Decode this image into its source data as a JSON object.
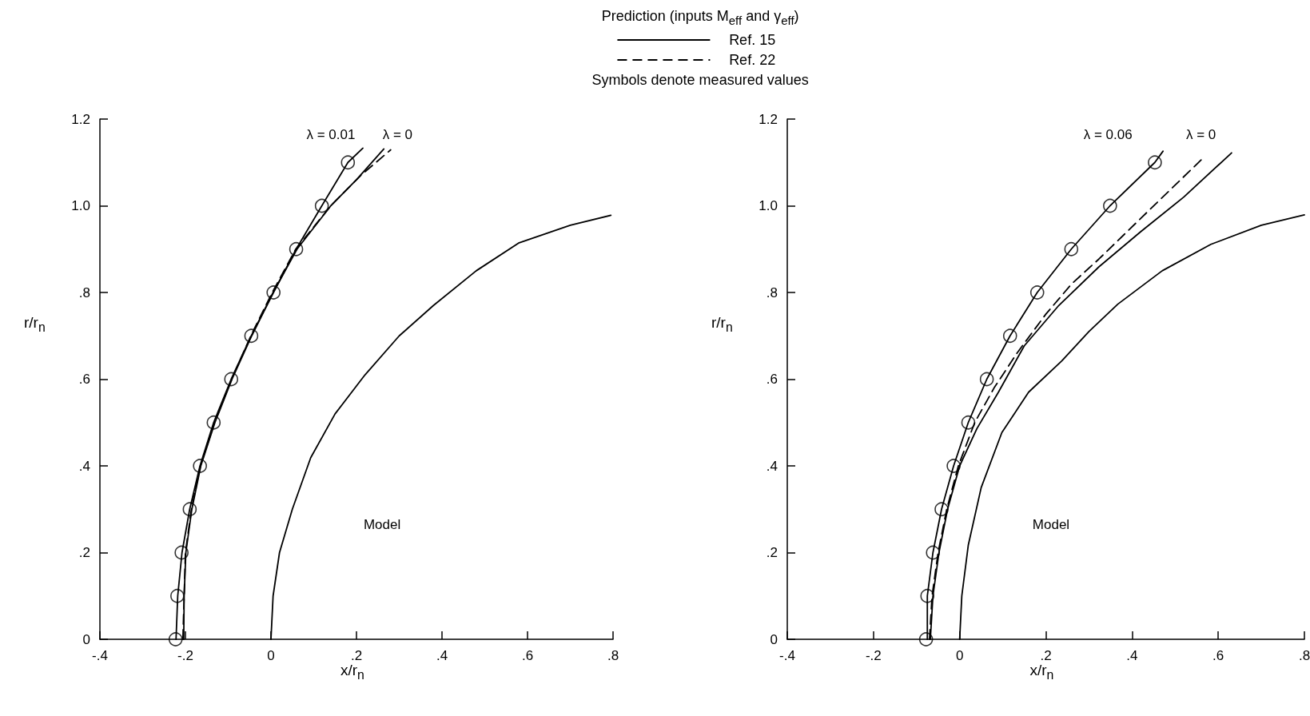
{
  "chart_data": [
    {
      "type": "line",
      "xlabel": "x/r$_{n}$",
      "ylabel": "r/r$_{n}$",
      "legend_title": "Prediction (inputs M$_{eff}$ and γ$_{eff}$)",
      "legend": "top",
      "grid": false,
      "xlim": [
        -0.4,
        0.8
      ],
      "ylim": [
        0,
        1.2
      ],
      "xticks": [
        {
          "value": -0.4,
          "label": "-.4"
        },
        {
          "value": -0.2,
          "label": "-.2"
        },
        0,
        {
          "value": 0.2,
          "label": ".2"
        },
        {
          "value": 0.4,
          "label": ".4"
        },
        {
          "value": 0.6,
          "label": ".6"
        },
        {
          "value": 0.8,
          "label": ".8"
        }
      ],
      "yticks": [
        0,
        {
          "value": 0.2,
          "label": ".2"
        },
        {
          "value": 0.4,
          "label": ".4"
        },
        {
          "value": 0.6,
          "label": ".6"
        },
        {
          "value": 0.8,
          "label": ".8"
        },
        {
          "value": 1.0,
          "label": "1.0"
        },
        {
          "value": 1.2,
          "label": "1.2"
        }
      ],
      "annotations": [
        "Symbols denote measured values",
        "λ = 0.01",
        "λ = 0",
        "Model"
      ],
      "series": [
        {
          "name": "Ref. 15",
          "type": "line",
          "line_style": "solid",
          "marker": "none",
          "color": "#000000",
          "x": [
            -0.222,
            -0.218,
            -0.208,
            -0.19,
            -0.166,
            -0.134,
            -0.093,
            -0.046,
            0.006,
            0.059,
            0.119,
            0.18,
            0.215
          ],
          "values": [
            0,
            0.1,
            0.2,
            0.3,
            0.4,
            0.5,
            0.6,
            0.7,
            0.8,
            0.9,
            1.0,
            1.1,
            1.133
          ]
        },
        {
          "type": "line",
          "line_style": "solid",
          "marker": "none",
          "color": "#000000",
          "x": [
            -0.204,
            -0.203,
            -0.199,
            -0.185,
            -0.164,
            -0.131,
            -0.091,
            -0.045,
            0.005,
            0.061,
            0.14,
            0.2,
            0.264
          ],
          "values": [
            0,
            0.1,
            0.2,
            0.3,
            0.4,
            0.5,
            0.6,
            0.7,
            0.8,
            0.9,
            1.0,
            1.06,
            1.131
          ]
        },
        {
          "name": "Ref. 22",
          "type": "line",
          "line_style": "dashed",
          "marker": "none",
          "color": "#000000",
          "x": [
            -0.206,
            -0.2,
            -0.186,
            -0.165,
            -0.132,
            -0.092,
            -0.047,
            0.003,
            0.058,
            0.14,
            0.21,
            0.28
          ],
          "values": [
            0,
            0.2,
            0.3,
            0.4,
            0.5,
            0.6,
            0.7,
            0.8,
            0.9,
            1.0,
            1.07,
            1.129
          ]
        },
        {
          "type": "scatter",
          "marker": "circle",
          "color": "#000000",
          "x": [
            -0.223,
            -0.219,
            -0.209,
            -0.19,
            -0.166,
            -0.134,
            -0.093,
            -0.046,
            0.006,
            0.059,
            0.119,
            0.18
          ],
          "values": [
            0,
            0.1,
            0.2,
            0.3,
            0.4,
            0.5,
            0.6,
            0.7,
            0.8,
            0.9,
            1.0,
            1.1
          ]
        },
        {
          "type": "line",
          "line_style": "solid",
          "marker": "none",
          "color": "#000000",
          "x": [
            0,
            0.005,
            0.02,
            0.05,
            0.093,
            0.15,
            0.22,
            0.3,
            0.38,
            0.48,
            0.579,
            0.7,
            0.795
          ],
          "values": [
            0,
            0.1,
            0.2,
            0.3,
            0.419,
            0.52,
            0.61,
            0.7,
            0.77,
            0.85,
            0.914,
            0.955,
            0.978
          ]
        }
      ]
    },
    {
      "type": "line",
      "xlabel": "x/r$_{n}$",
      "ylabel": "r/r$_{n}$",
      "grid": false,
      "xlim": [
        -0.4,
        0.8
      ],
      "ylim": [
        0,
        1.2
      ],
      "xticks": [
        {
          "value": -0.4,
          "label": "-.4"
        },
        {
          "value": -0.2,
          "label": "-.2"
        },
        0,
        {
          "value": 0.2,
          "label": ".2"
        },
        {
          "value": 0.4,
          "label": ".4"
        },
        {
          "value": 0.6,
          "label": ".6"
        },
        {
          "value": 0.8,
          "label": ".8"
        }
      ],
      "yticks": [
        0,
        {
          "value": 0.2,
          "label": ".2"
        },
        {
          "value": 0.4,
          "label": ".4"
        },
        {
          "value": 0.6,
          "label": ".6"
        },
        {
          "value": 0.8,
          "label": ".8"
        },
        {
          "value": 1.0,
          "label": "1.0"
        },
        {
          "value": 1.2,
          "label": "1.2"
        }
      ],
      "annotations": [
        "λ = 0.06",
        "λ = 0",
        "Model"
      ],
      "series": [
        {
          "type": "line",
          "line_style": "solid",
          "marker": "none",
          "color": "#000000",
          "x": [
            -0.075,
            -0.075,
            -0.062,
            -0.042,
            -0.014,
            0.02,
            0.063,
            0.117,
            0.18,
            0.259,
            0.349,
            0.453,
            0.472
          ],
          "values": [
            0,
            0.1,
            0.2,
            0.3,
            0.4,
            0.5,
            0.6,
            0.7,
            0.8,
            0.9,
            1.0,
            1.1,
            1.126
          ]
        },
        {
          "type": "line",
          "line_style": "solid",
          "marker": "none",
          "color": "#000000",
          "x": [
            -0.068,
            -0.062,
            -0.048,
            -0.028,
            0.0,
            0.04,
            0.09,
            0.15,
            0.23,
            0.323,
            0.42,
            0.52,
            0.631
          ],
          "values": [
            0,
            0.1,
            0.2,
            0.3,
            0.4,
            0.486,
            0.57,
            0.677,
            0.77,
            0.859,
            0.94,
            1.02,
            1.122
          ]
        },
        {
          "type": "line",
          "line_style": "dashed",
          "marker": "none",
          "color": "#000000",
          "x": [
            -0.07,
            -0.064,
            -0.05,
            -0.03,
            -0.003,
            0.035,
            0.08,
            0.133,
            0.2,
            0.26,
            0.323,
            0.44,
            0.568
          ],
          "values": [
            0,
            0.1,
            0.2,
            0.3,
            0.4,
            0.5,
            0.58,
            0.66,
            0.75,
            0.82,
            0.877,
            0.99,
            1.113
          ]
        },
        {
          "type": "scatter",
          "marker": "circle",
          "color": "#000000",
          "x": [
            -0.078,
            -0.075,
            -0.062,
            -0.042,
            -0.014,
            0.02,
            0.063,
            0.117,
            0.18,
            0.259,
            0.349,
            0.453
          ],
          "values": [
            0,
            0.1,
            0.2,
            0.3,
            0.4,
            0.5,
            0.6,
            0.7,
            0.8,
            0.9,
            1.0,
            1.1
          ]
        },
        {
          "type": "line",
          "line_style": "solid",
          "marker": "none",
          "color": "#000000",
          "x": [
            0,
            0.005,
            0.02,
            0.05,
            0.098,
            0.16,
            0.237,
            0.3,
            0.367,
            0.47,
            0.583,
            0.7,
            0.8
          ],
          "values": [
            0,
            0.1,
            0.217,
            0.35,
            0.477,
            0.57,
            0.642,
            0.71,
            0.773,
            0.85,
            0.911,
            0.955,
            0.979
          ]
        }
      ]
    }
  ]
}
